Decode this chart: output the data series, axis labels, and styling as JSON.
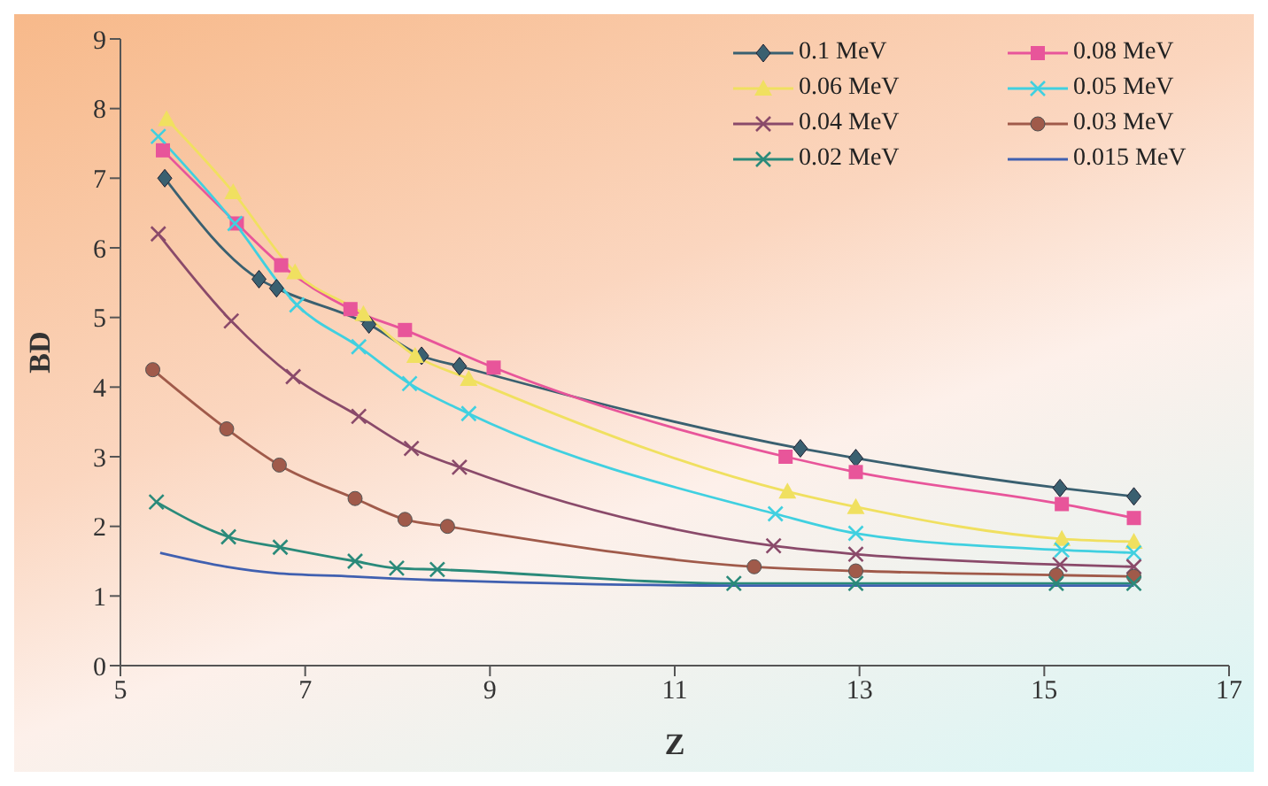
{
  "chart_data": {
    "type": "line",
    "xlabel": "Z",
    "ylabel": "BD",
    "xlim": [
      5,
      17
    ],
    "xticks": [
      5,
      7,
      9,
      11,
      13,
      15,
      17
    ],
    "ylim": [
      0,
      9
    ],
    "yticks": [
      0,
      1,
      2,
      3,
      4,
      5,
      6,
      7,
      8,
      9
    ],
    "grid": false,
    "legend": "top right",
    "line_style": "solid",
    "series": [
      {
        "name": "0.1 MeV",
        "color": "#3a6070",
        "marker": "diamond",
        "x": [
          5.48,
          6.5,
          6.69,
          7.69,
          8.26,
          8.67,
          12.36,
          12.96,
          15.17,
          15.97
        ],
        "values": [
          7.0,
          5.55,
          5.42,
          4.9,
          4.45,
          4.3,
          3.12,
          2.98,
          2.55,
          2.43
        ]
      },
      {
        "name": "0.08 MeV",
        "color": "#e8559a",
        "marker": "square",
        "x": [
          5.46,
          6.26,
          6.74,
          7.49,
          8.08,
          9.04,
          12.2,
          12.96,
          15.19,
          15.97
        ],
        "values": [
          7.4,
          6.35,
          5.75,
          5.12,
          4.82,
          4.28,
          3.0,
          2.78,
          2.32,
          2.12
        ]
      },
      {
        "name": "0.06 MeV",
        "color": "#f0e060",
        "marker": "triangle",
        "x": [
          5.5,
          6.22,
          6.89,
          7.63,
          8.19,
          8.77,
          12.22,
          12.96,
          15.19,
          15.97
        ],
        "values": [
          7.85,
          6.8,
          5.65,
          5.05,
          4.45,
          4.12,
          2.5,
          2.28,
          1.82,
          1.78
        ]
      },
      {
        "name": "0.05 MeV",
        "color": "#40d0e0",
        "marker": "cross",
        "x": [
          5.41,
          6.24,
          6.91,
          7.58,
          8.13,
          8.77,
          12.09,
          12.96,
          15.19,
          15.97
        ],
        "values": [
          7.6,
          6.35,
          5.18,
          4.58,
          4.05,
          3.62,
          2.18,
          1.9,
          1.66,
          1.62
        ]
      },
      {
        "name": "0.04 MeV",
        "color": "#8a4a6a",
        "marker": "cross",
        "x": [
          5.41,
          6.2,
          6.87,
          7.58,
          8.15,
          8.67,
          12.07,
          12.96,
          15.17,
          15.97
        ],
        "values": [
          6.2,
          4.95,
          4.15,
          3.58,
          3.12,
          2.85,
          1.72,
          1.6,
          1.45,
          1.42
        ]
      },
      {
        "name": "0.03 MeV",
        "color": "#a05a4a",
        "marker": "circle",
        "x": [
          5.35,
          6.15,
          6.72,
          7.54,
          8.08,
          8.54,
          11.86,
          12.96,
          15.13,
          15.97
        ],
        "values": [
          4.25,
          3.4,
          2.88,
          2.4,
          2.1,
          2.0,
          1.42,
          1.36,
          1.3,
          1.28
        ]
      },
      {
        "name": "0.02 MeV",
        "color": "#2a8a7a",
        "marker": "cross",
        "x": [
          5.39,
          6.17,
          6.73,
          7.54,
          7.99,
          8.43,
          11.64,
          12.96,
          15.13,
          15.97
        ],
        "values": [
          2.35,
          1.85,
          1.7,
          1.5,
          1.4,
          1.38,
          1.18,
          1.18,
          1.18,
          1.18
        ]
      },
      {
        "name": "0.015 MeV",
        "color": "#4060b0",
        "marker": "none",
        "x": [
          5.43,
          6.15,
          6.67,
          7.52,
          7.95,
          8.38,
          11.6,
          12.96,
          15.13,
          15.97
        ],
        "values": [
          1.62,
          1.42,
          1.33,
          1.28,
          1.25,
          1.23,
          1.15,
          1.15,
          1.15,
          1.15
        ]
      }
    ]
  }
}
